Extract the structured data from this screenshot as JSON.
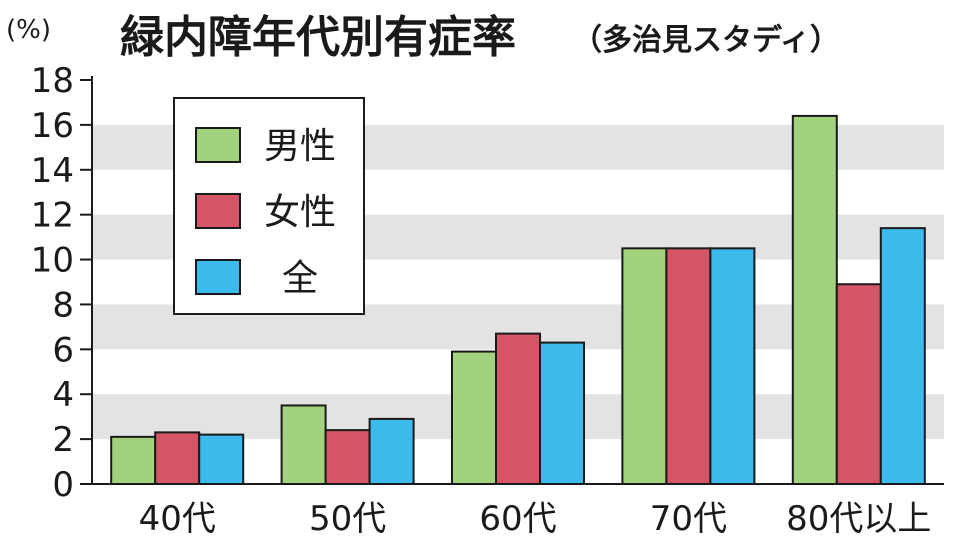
{
  "chart_data": {
    "type": "bar",
    "title": "緑内障年代別有症率",
    "subtitle": "（多治見スタディ）",
    "unit_label": "(%)",
    "categories": [
      "40代",
      "50代",
      "60代",
      "70代",
      "80代以上"
    ],
    "series": [
      {
        "name": "男性",
        "values": [
          2.1,
          3.5,
          5.9,
          10.5,
          16.4
        ],
        "color": "#a3d27f"
      },
      {
        "name": "女性",
        "values": [
          2.3,
          2.4,
          6.7,
          10.5,
          8.9
        ],
        "color": "#d45566"
      },
      {
        "name": "全",
        "values": [
          2.2,
          2.9,
          6.3,
          10.5,
          11.4
        ],
        "color": "#3dbaec"
      }
    ],
    "ylim": [
      0,
      18
    ],
    "yticks": [
      0,
      2,
      4,
      6,
      8,
      10,
      12,
      14,
      16,
      18
    ],
    "grid": "alternating gray bands",
    "legend_position": "top-left"
  }
}
